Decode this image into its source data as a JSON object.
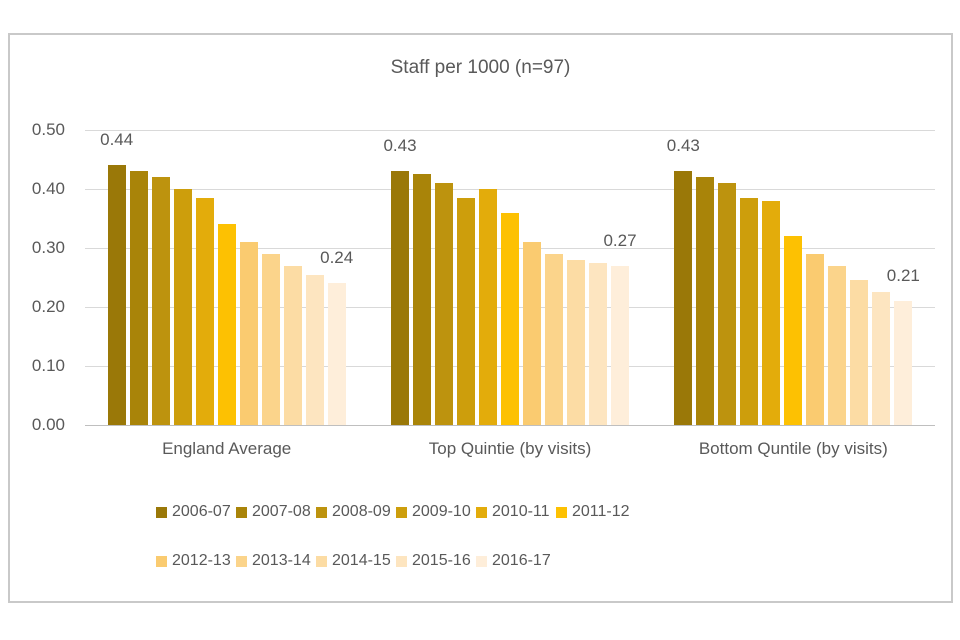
{
  "frame": {
    "border_color": "#C9C9C9",
    "background": "#FFFFFF"
  },
  "chart_data": {
    "type": "bar",
    "title": "Staff per 1000 (n=97)",
    "categories": [
      "England Average",
      "Top Quintie (by visits)",
      "Bottom Quntile (by visits)"
    ],
    "series": [
      {
        "name": "2006-07",
        "color": "#9A7808",
        "values": [
          0.44,
          0.43,
          0.43
        ]
      },
      {
        "name": "2007-08",
        "color": "#A98409",
        "values": [
          0.43,
          0.425,
          0.42
        ]
      },
      {
        "name": "2008-09",
        "color": "#BD930E",
        "values": [
          0.42,
          0.41,
          0.41
        ]
      },
      {
        "name": "2009-10",
        "color": "#CD9E0C",
        "values": [
          0.4,
          0.385,
          0.385
        ]
      },
      {
        "name": "2010-11",
        "color": "#E3AC0B",
        "values": [
          0.385,
          0.4,
          0.38
        ]
      },
      {
        "name": "2011-12",
        "color": "#FDC102",
        "values": [
          0.34,
          0.36,
          0.32
        ]
      },
      {
        "name": "2012-13",
        "color": "#FACB70",
        "values": [
          0.31,
          0.31,
          0.29
        ]
      },
      {
        "name": "2013-14",
        "color": "#FBD48B",
        "values": [
          0.29,
          0.29,
          0.27
        ]
      },
      {
        "name": "2014-15",
        "color": "#FCDCA4",
        "values": [
          0.27,
          0.28,
          0.245
        ]
      },
      {
        "name": "2015-16",
        "color": "#FDE5C0",
        "values": [
          0.255,
          0.275,
          0.225
        ]
      },
      {
        "name": "2016-17",
        "color": "#FEEEDA",
        "values": [
          0.24,
          0.27,
          0.21
        ]
      }
    ],
    "ylim": [
      0,
      0.5
    ],
    "ytick_labels": [
      "0.50",
      "0.40",
      "0.30",
      "0.20",
      "0.10",
      "0.00"
    ],
    "grid": true,
    "legend_position": "bottom",
    "legend_rows": [
      6,
      5
    ],
    "bar_labels": {
      "first": [
        "0.44",
        "0.43",
        "0.43"
      ],
      "last": [
        "0.24",
        "0.27",
        "0.21"
      ]
    },
    "text_color": "#595959",
    "gridline_color": "#D9D9D9",
    "axisline_color": "#BFBFBF"
  }
}
